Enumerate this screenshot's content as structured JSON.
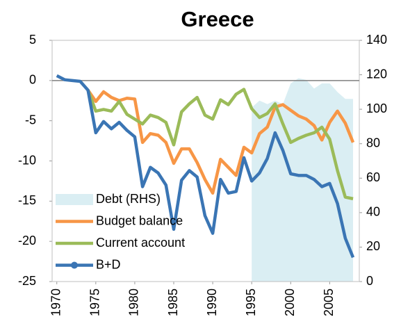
{
  "chart_data": {
    "type": "line",
    "title": "Greece",
    "x": [
      1970,
      1971,
      1972,
      1973,
      1974,
      1975,
      1976,
      1977,
      1978,
      1979,
      1980,
      1981,
      1982,
      1983,
      1984,
      1985,
      1986,
      1987,
      1988,
      1989,
      1990,
      1991,
      1992,
      1993,
      1994,
      1995,
      1996,
      1997,
      1998,
      1999,
      2000,
      2001,
      2002,
      2003,
      2004,
      2005,
      2006,
      2007,
      2008
    ],
    "xlim": [
      1969.4,
      2008.8
    ],
    "xticks": [
      1970,
      1975,
      1980,
      1985,
      1990,
      1995,
      2000,
      2005
    ],
    "ylim": [
      -25,
      5
    ],
    "yticks": [
      -25,
      -20,
      -15,
      -10,
      -5,
      0,
      5
    ],
    "y2lim": [
      0,
      140
    ],
    "y2ticks": [
      0,
      20,
      40,
      60,
      80,
      100,
      120,
      140
    ],
    "legend": "lower left",
    "series": [
      {
        "name": "Debt (RHS)",
        "type": "area",
        "axis": "y2",
        "color": "#daeef3",
        "values": [
          null,
          null,
          null,
          null,
          null,
          null,
          null,
          null,
          null,
          null,
          null,
          null,
          null,
          null,
          null,
          null,
          null,
          null,
          null,
          null,
          null,
          null,
          null,
          null,
          null,
          101,
          105,
          103,
          105,
          103,
          115,
          118,
          117,
          112,
          115,
          115,
          110,
          106,
          106
        ]
      },
      {
        "name": "Budget balance",
        "type": "line",
        "color": "#f79646",
        "values": [
          null,
          null,
          null,
          null,
          -1.2,
          -2.6,
          -1.4,
          -2.1,
          -2.5,
          -2.2,
          -2.3,
          -7.7,
          -6.6,
          -6.8,
          -7.7,
          -10.3,
          -8.5,
          -8.5,
          -10.2,
          -12.3,
          -14,
          -9.8,
          -10.8,
          -11.8,
          -8.3,
          -9,
          -6.6,
          -5.8,
          -3.3,
          -3,
          -3.7,
          -4.4,
          -4.8,
          -5.6,
          -7.4,
          -5.2,
          -3.8,
          -5.3,
          -7.7
        ]
      },
      {
        "name": "Current account",
        "type": "line",
        "color": "#9bbb59",
        "values": [
          null,
          null,
          null,
          null,
          -1.2,
          -3.8,
          -3.6,
          -3.8,
          -2.6,
          -4.2,
          -4.8,
          -5.4,
          -4.3,
          -4.6,
          -5.2,
          -8,
          -3.9,
          -2.9,
          -2.1,
          -4.3,
          -4.8,
          -2.4,
          -3,
          -1.7,
          -1.1,
          -3.5,
          -4.6,
          -4.1,
          -2.9,
          -5.4,
          -7.7,
          -7.2,
          -6.8,
          -6.5,
          -5.8,
          -7.3,
          -11.2,
          -14.5,
          -14.7
        ]
      },
      {
        "name": "B+D",
        "type": "line",
        "color": "#3a75b4",
        "values": [
          0.6,
          0.1,
          0,
          -0.1,
          -1.2,
          -6.5,
          -5.1,
          -6,
          -5.2,
          -6.2,
          -7,
          -13.2,
          -10.8,
          -11.5,
          -13,
          -18.5,
          -12.4,
          -11.2,
          -12,
          -16.8,
          -19,
          -12.3,
          -14,
          -13.8,
          -9.6,
          -12.5,
          -11.5,
          -9.7,
          -6.5,
          -8.7,
          -11.6,
          -11.8,
          -11.8,
          -12.3,
          -13.2,
          -12.8,
          -15.3,
          -19.6,
          -22
        ]
      }
    ]
  }
}
